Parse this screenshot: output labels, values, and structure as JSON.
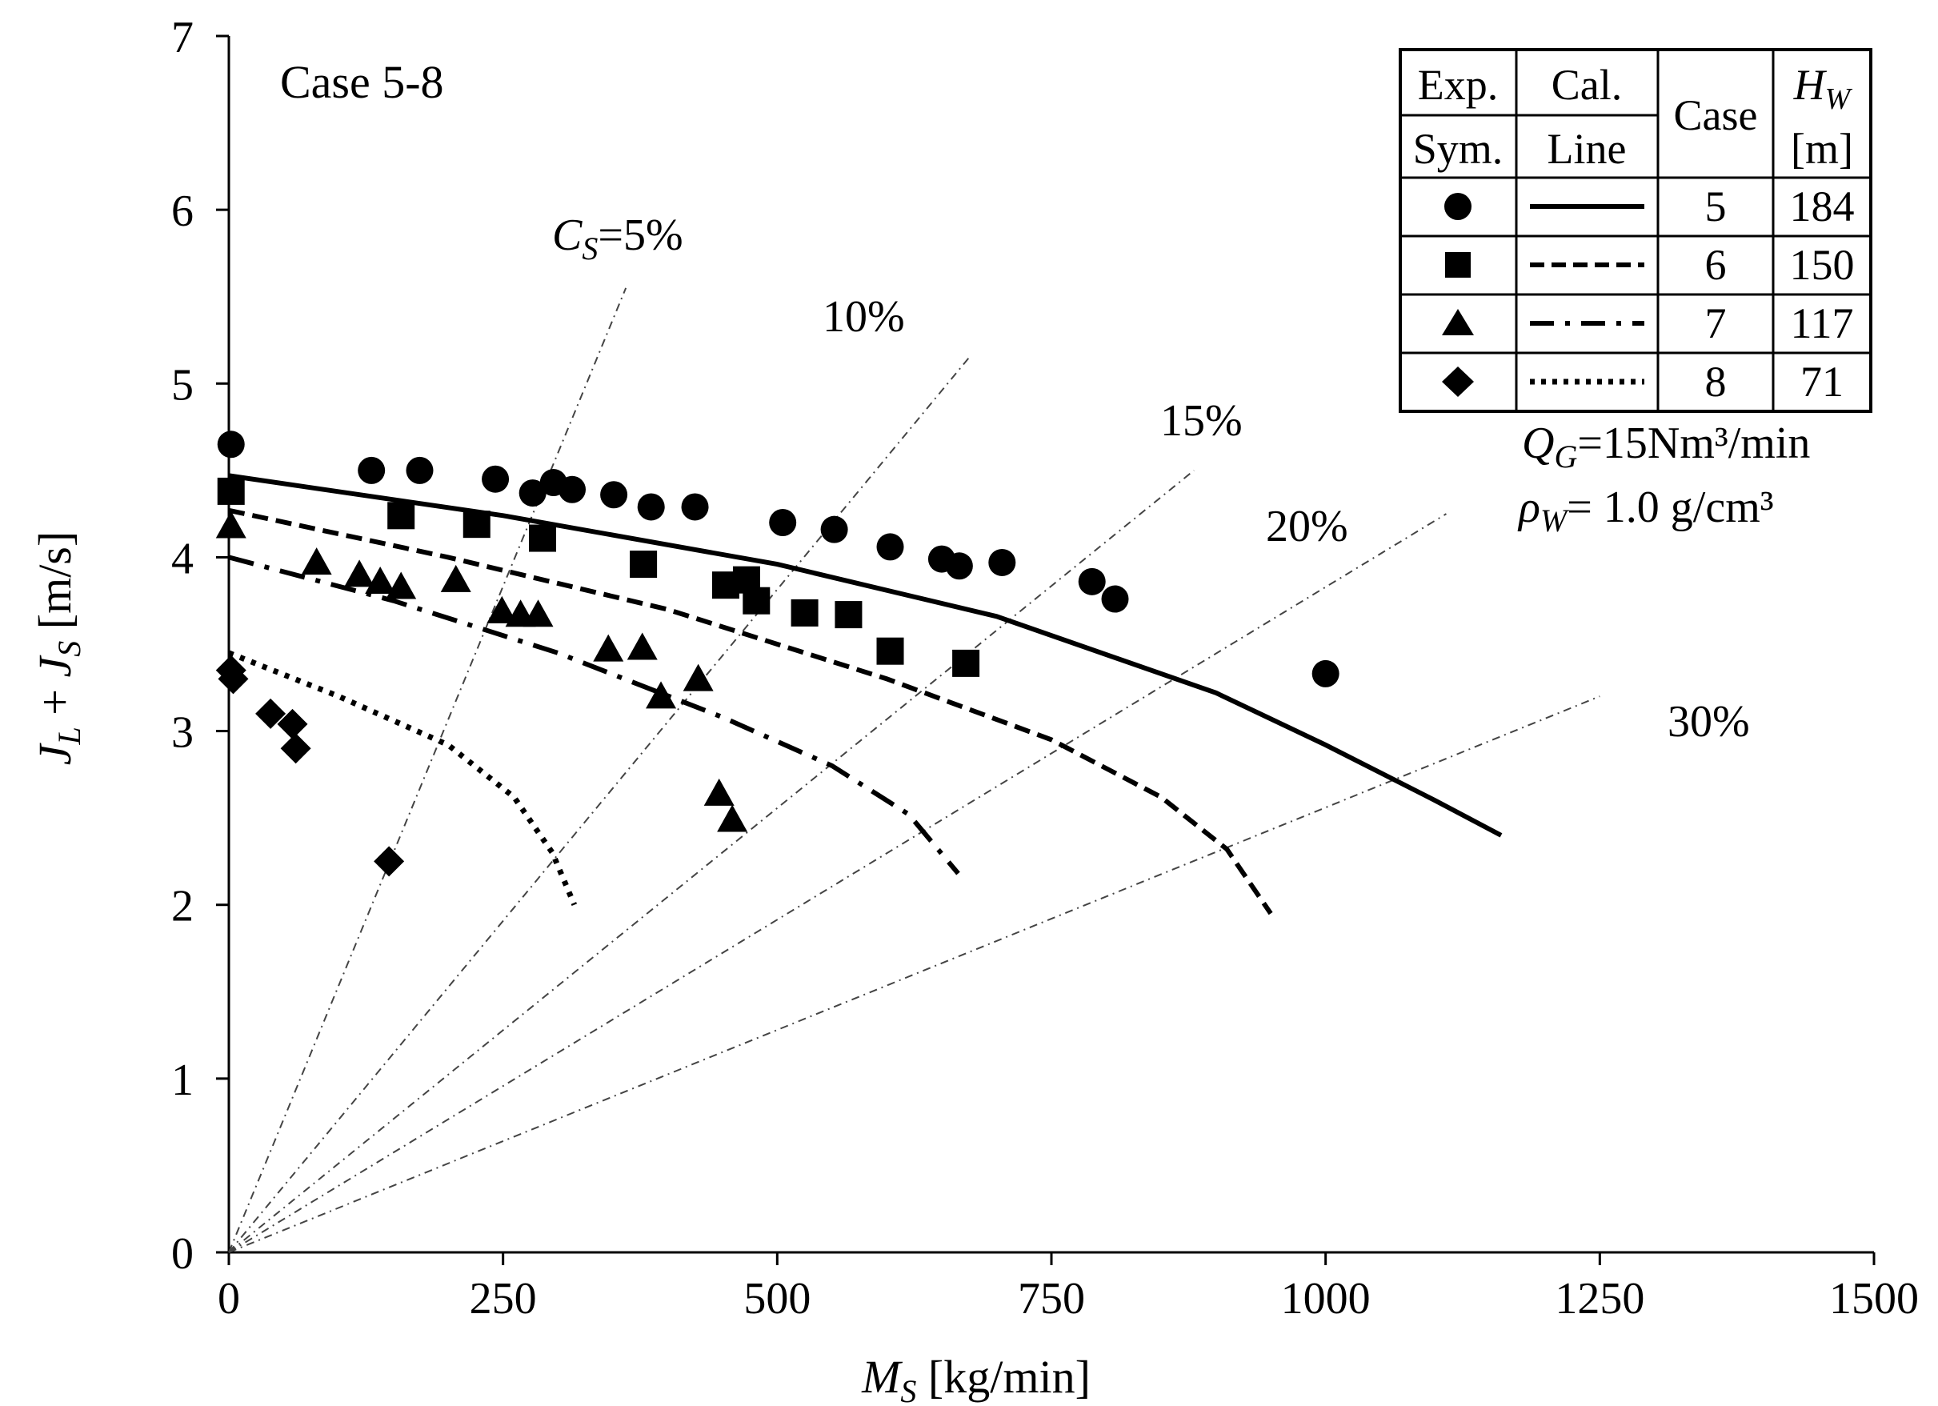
{
  "chart_data": {
    "type": "scatter",
    "title": "Case 5-8",
    "xlabel": {
      "main": "M",
      "sub": "S",
      "unit": " [kg/min]"
    },
    "ylabel": {
      "j1": "J",
      "s1": "L",
      "mid": " + ",
      "j2": "J",
      "s2": "S",
      "unit": " [m/s]"
    },
    "xlim": [
      0,
      1500
    ],
    "ylim": [
      0,
      7
    ],
    "xticks": [
      0,
      250,
      500,
      750,
      1000,
      1250,
      1500
    ],
    "yticks": [
      0,
      1,
      2,
      3,
      4,
      5,
      6,
      7
    ],
    "concentration_lines": [
      {
        "label": "5%",
        "label_prefix": "C",
        "label_sub": "S",
        "label_eq": "=",
        "end": [
          362,
          5.55
        ]
      },
      {
        "label": "10%",
        "end": [
          675,
          5.15
        ]
      },
      {
        "label": "15%",
        "end": [
          880,
          4.5
        ]
      },
      {
        "label": "20%",
        "end": [
          1110,
          4.25
        ]
      },
      {
        "label": "30%",
        "end": [
          1250,
          3.2
        ]
      }
    ],
    "series": [
      {
        "case": "5",
        "hw": "184",
        "marker": "circle",
        "line": "solid",
        "points": [
          [
            2,
            4.65
          ],
          [
            130,
            4.5
          ],
          [
            174,
            4.5
          ],
          [
            243,
            4.45
          ],
          [
            277,
            4.37
          ],
          [
            296,
            4.43
          ],
          [
            313,
            4.39
          ],
          [
            351,
            4.36
          ],
          [
            385,
            4.29
          ],
          [
            425,
            4.29
          ],
          [
            505,
            4.2
          ],
          [
            552,
            4.16
          ],
          [
            603,
            4.06
          ],
          [
            650,
            3.99
          ],
          [
            666,
            3.95
          ],
          [
            705,
            3.97
          ],
          [
            787,
            3.86
          ],
          [
            808,
            3.76
          ],
          [
            1000,
            3.33
          ]
        ],
        "curve": [
          [
            0,
            4.47
          ],
          [
            250,
            4.24
          ],
          [
            500,
            3.96
          ],
          [
            700,
            3.66
          ],
          [
            900,
            3.22
          ],
          [
            1000,
            2.92
          ],
          [
            1100,
            2.6
          ],
          [
            1160,
            2.4
          ]
        ]
      },
      {
        "case": "6",
        "hw": "150",
        "marker": "square",
        "line": "dashed",
        "points": [
          [
            2,
            4.38
          ],
          [
            157,
            4.24
          ],
          [
            226,
            4.19
          ],
          [
            286,
            4.11
          ],
          [
            378,
            3.96
          ],
          [
            453,
            3.84
          ],
          [
            472,
            3.87
          ],
          [
            481,
            3.75
          ],
          [
            525,
            3.68
          ],
          [
            565,
            3.67
          ],
          [
            603,
            3.46
          ],
          [
            672,
            3.39
          ]
        ],
        "curve": [
          [
            0,
            4.27
          ],
          [
            200,
            4.0
          ],
          [
            400,
            3.7
          ],
          [
            600,
            3.3
          ],
          [
            750,
            2.95
          ],
          [
            850,
            2.62
          ],
          [
            910,
            2.32
          ],
          [
            950,
            1.95
          ]
        ]
      },
      {
        "case": "7",
        "hw": "117",
        "marker": "triangle",
        "line": "dashdot",
        "points": [
          [
            2,
            4.17
          ],
          [
            80,
            3.96
          ],
          [
            119,
            3.89
          ],
          [
            138,
            3.85
          ],
          [
            157,
            3.82
          ],
          [
            207,
            3.86
          ],
          [
            249,
            3.68
          ],
          [
            266,
            3.66
          ],
          [
            282,
            3.66
          ],
          [
            346,
            3.46
          ],
          [
            377,
            3.47
          ],
          [
            394,
            3.19
          ],
          [
            428,
            3.29
          ],
          [
            447,
            2.63
          ],
          [
            459,
            2.48
          ]
        ],
        "curve": [
          [
            0,
            4.0
          ],
          [
            150,
            3.75
          ],
          [
            300,
            3.45
          ],
          [
            450,
            3.08
          ],
          [
            550,
            2.8
          ],
          [
            620,
            2.52
          ],
          [
            665,
            2.18
          ]
        ]
      },
      {
        "case": "8",
        "hw": "71",
        "marker": "diamond",
        "line": "dotted",
        "points": [
          [
            2,
            3.35
          ],
          [
            4,
            3.3
          ],
          [
            38,
            3.1
          ],
          [
            58,
            3.04
          ],
          [
            61,
            2.9
          ],
          [
            146,
            2.25
          ]
        ],
        "curve": [
          [
            0,
            3.45
          ],
          [
            100,
            3.2
          ],
          [
            200,
            2.92
          ],
          [
            260,
            2.62
          ],
          [
            295,
            2.3
          ],
          [
            315,
            2.0
          ]
        ]
      }
    ],
    "legend": {
      "headers": {
        "exp": "Exp.",
        "sym": "Sym.",
        "cal": "Cal.",
        "line": "Line",
        "case": "Case",
        "hw_main": "H",
        "hw_sub": "W",
        "hw_unit": "[m]"
      }
    },
    "notes": {
      "qg_main": "Q",
      "qg_sub": "G",
      "qg_value": "=15Nm³/min",
      "rho_main": "ρ",
      "rho_sub": "W",
      "rho_value": "= 1.0 g/cm³"
    }
  }
}
